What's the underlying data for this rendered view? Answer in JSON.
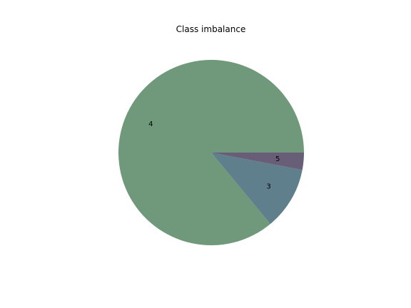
{
  "chart_data": {
    "type": "pie",
    "title": "Class imbalance",
    "categories": [
      "4",
      "3",
      "5"
    ],
    "values": [
      86,
      11,
      3
    ],
    "colors": [
      "#6f997a",
      "#5f7f8d",
      "#695e78"
    ],
    "start_angle_deg": 0,
    "direction": "counterclockwise",
    "legend": "none"
  }
}
